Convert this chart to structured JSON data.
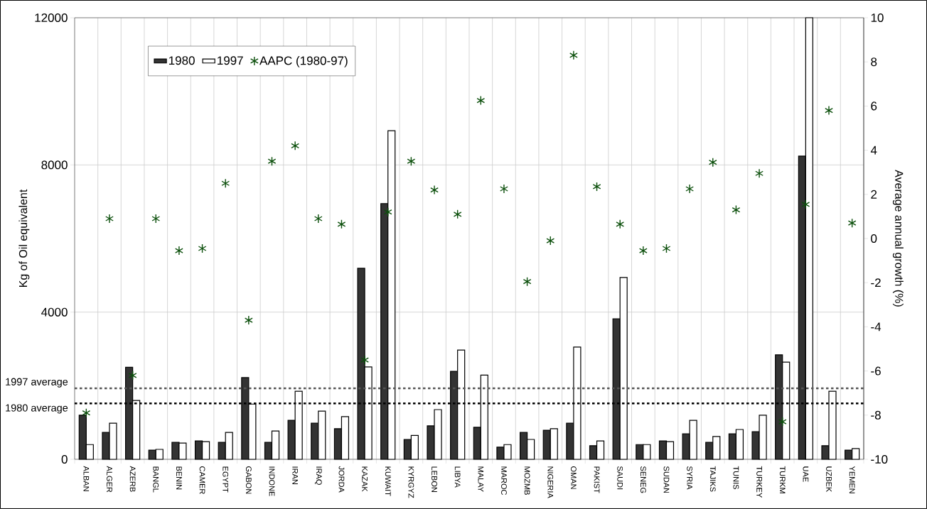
{
  "chart_data": {
    "type": "bar",
    "ylabel": "Kg of Oil equivalent",
    "y2label": "Average annual growth (%)",
    "categories": [
      "ALBAN",
      "ALGER",
      "AZERB",
      "BANGL",
      "BENIN",
      "CAMER",
      "EGYPT",
      "GABON",
      "INDONE",
      "IRAN",
      "IRAQ",
      "JORDA",
      "KAZAK",
      "KUWAIT",
      "KYRGYZ",
      "LEBON",
      "LIBYA",
      "MALAY",
      "MAROC",
      "MOZMB",
      "NIGERIA",
      "OMAN",
      "PAKIST",
      "SAUDI",
      "SENEG",
      "SUDAN",
      "SYRIA",
      "TAJIKS",
      "TUNIS",
      "TURKEY",
      "TURKM",
      "UAE",
      "UZBEK",
      "YEMEN"
    ],
    "series": [
      {
        "name": "1980",
        "color": "#333333",
        "values": [
          1200,
          730,
          2500,
          250,
          460,
          500,
          460,
          2220,
          460,
          1060,
          980,
          830,
          5190,
          6950,
          540,
          910,
          2390,
          870,
          330,
          730,
          790,
          980,
          370,
          3820,
          400,
          500,
          690,
          460,
          690,
          750,
          2840,
          8240,
          370,
          250
        ]
      },
      {
        "name": "1997",
        "color": "#ffffff",
        "values": [
          400,
          980,
          1600,
          270,
          440,
          480,
          730,
          1500,
          770,
          1850,
          1310,
          1160,
          2510,
          8930,
          650,
          1350,
          2970,
          2290,
          400,
          540,
          830,
          3050,
          500,
          4940,
          400,
          480,
          1060,
          620,
          810,
          1200,
          2640,
          12000,
          1850,
          290
        ]
      },
      {
        "name": "AAPC (1980-97)",
        "type": "scatter",
        "axis": "y2",
        "color": "#0b4f0b",
        "values": [
          -7.9,
          0.9,
          -6.2,
          0.9,
          -0.55,
          -0.45,
          2.5,
          -3.7,
          3.5,
          4.2,
          0.9,
          0.65,
          -5.5,
          1.2,
          3.5,
          2.2,
          1.1,
          6.25,
          2.25,
          -1.95,
          -0.1,
          8.3,
          2.35,
          0.65,
          -0.55,
          -0.45,
          2.25,
          3.45,
          1.3,
          2.95,
          -8.3,
          1.55,
          5.8,
          0.7
        ]
      }
    ],
    "ylim": [
      0,
      12000
    ],
    "yticks": [
      0,
      4000,
      8000,
      12000
    ],
    "y2lim": [
      -10,
      10
    ],
    "y2ticks": [
      -10,
      -8,
      -6,
      -4,
      -2,
      0,
      2,
      4,
      6,
      8,
      10
    ],
    "ref_lines": [
      {
        "axis": "y",
        "value": 1930,
        "label": "1997 average",
        "color": "#555555",
        "line_style": "dotted"
      },
      {
        "axis": "y",
        "value": 1520,
        "label": "1980 average",
        "color": "#000000",
        "line_style": "dotted"
      }
    ],
    "grid": true,
    "legend": "top left",
    "marker": "cross"
  }
}
